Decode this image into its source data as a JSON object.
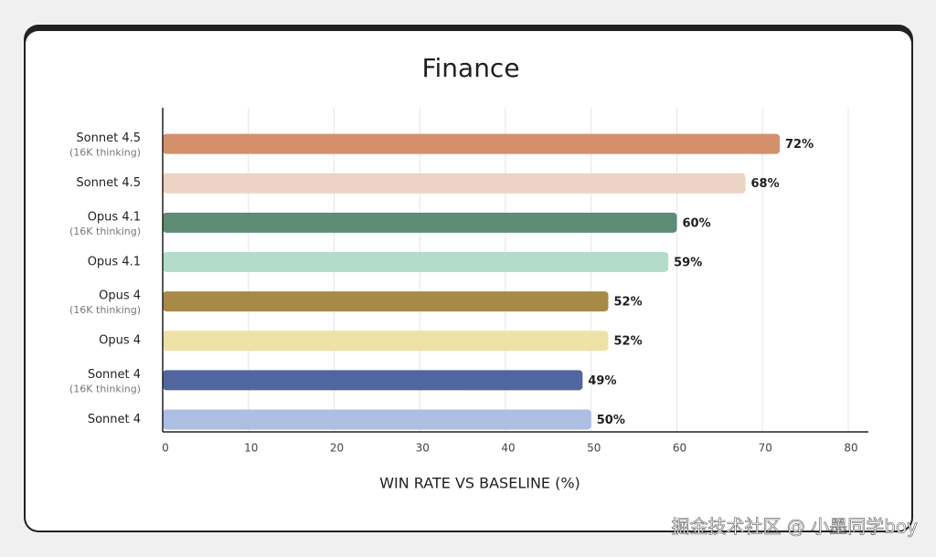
{
  "chart_data": {
    "type": "hbar",
    "title": "Finance",
    "x_label": "WIN RATE VS BASELINE (%)",
    "categories": [
      "Sonnet 4.5",
      "Sonnet 4.5",
      "Opus 4.1",
      "Opus 4.1",
      "Opus 4",
      "Opus 4",
      "Sonnet 4",
      "Sonnet 4"
    ],
    "category_notes": [
      "(16K thinking)",
      null,
      "(16K thinking)",
      null,
      "(16K thinking)",
      null,
      "(16K thinking)",
      null
    ],
    "values": [
      72,
      68,
      60,
      59,
      52,
      52,
      49,
      50
    ],
    "value_labels": [
      "72%",
      "68%",
      "60%",
      "59%",
      "52%",
      "52%",
      "49%",
      "50%"
    ],
    "colors": [
      "#d4906a",
      "#ecd3c3",
      "#5e8c76",
      "#b3dcca",
      "#a88a48",
      "#efe1a5",
      "#51669f",
      "#aebee2"
    ],
    "xlim": [
      0,
      80
    ],
    "xticks": [
      0,
      10,
      20,
      30,
      40,
      50,
      60,
      70,
      80
    ],
    "grid": true
  },
  "watermark": "掘金技术社区 @ 小墨同学boy"
}
